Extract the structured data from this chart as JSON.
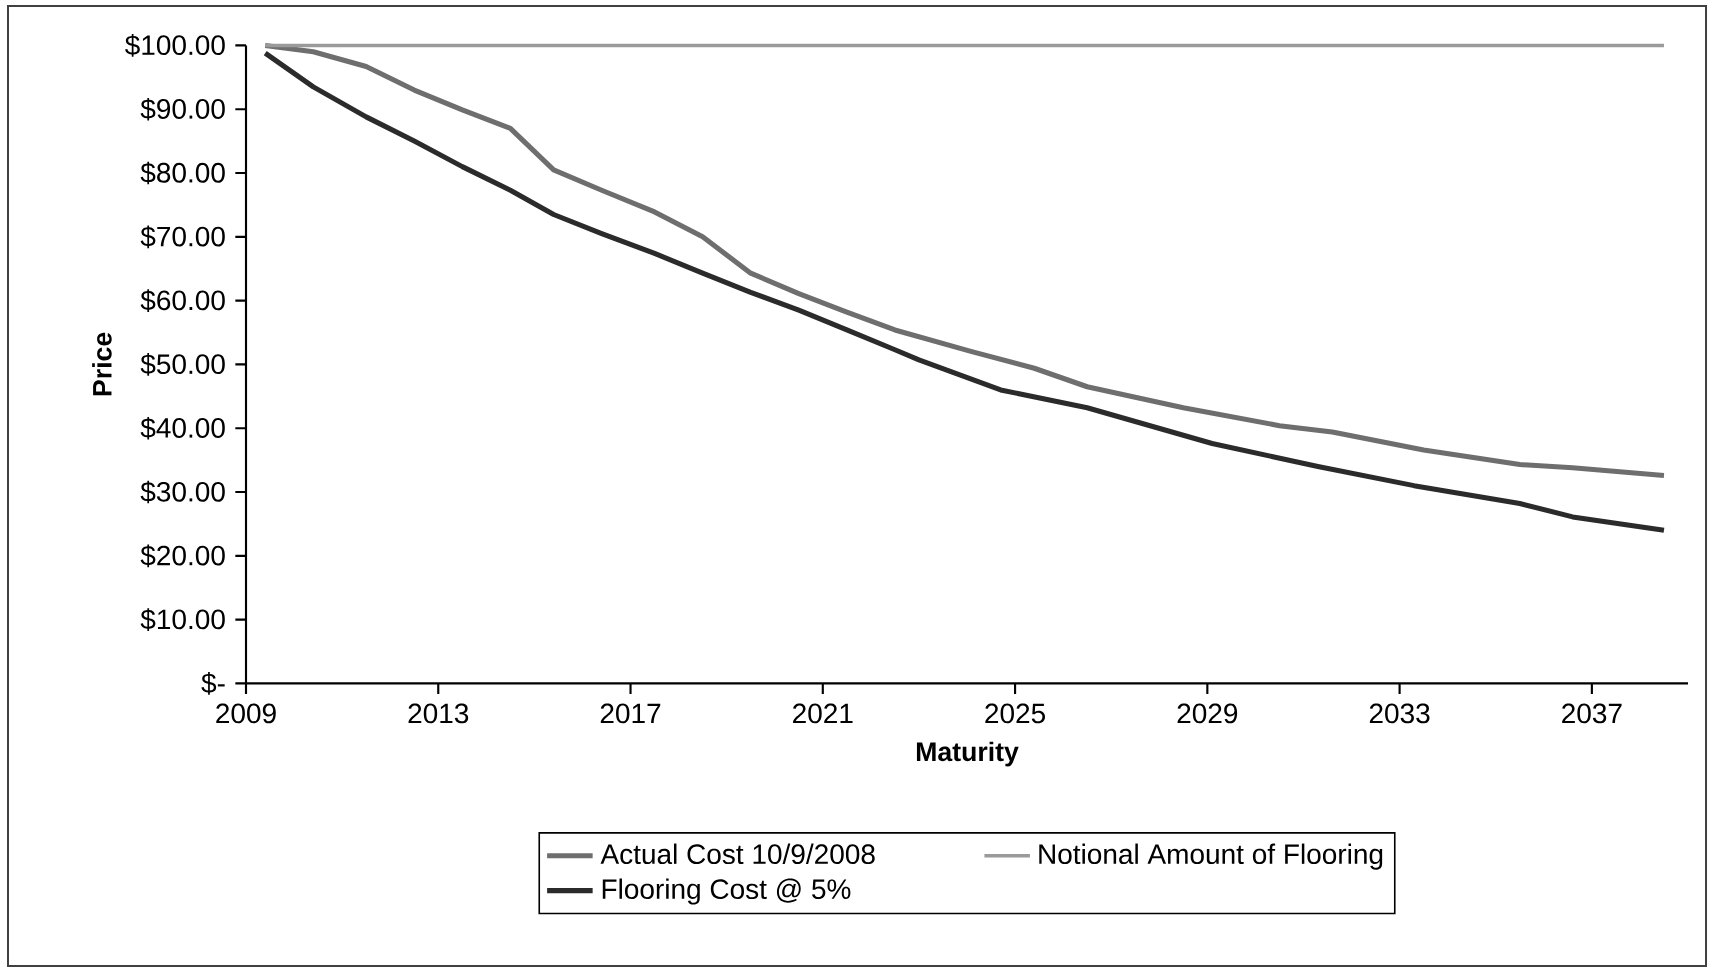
{
  "chart_data": {
    "type": "line",
    "xlabel": "Maturity",
    "ylabel": "Price",
    "xlim": [
      2009,
      2039
    ],
    "xticks": [
      2009,
      2013,
      2017,
      2021,
      2025,
      2029,
      2033,
      2037
    ],
    "ylim": [
      0,
      100
    ],
    "yticks": [
      {
        "value": 0,
        "label": "$-"
      },
      {
        "value": 10,
        "label": "$10.00"
      },
      {
        "value": 20,
        "label": "$20.00"
      },
      {
        "value": 30,
        "label": "$30.00"
      },
      {
        "value": 40,
        "label": "$40.00"
      },
      {
        "value": 50,
        "label": "$50.00"
      },
      {
        "value": 60,
        "label": "$60.00"
      },
      {
        "value": 70,
        "label": "$70.00"
      },
      {
        "value": 80,
        "label": "$80.00"
      },
      {
        "value": 90,
        "label": "$90.00"
      },
      {
        "value": 100,
        "label": "$100.00"
      }
    ],
    "grid": false,
    "legend": "bottom",
    "marker": "none",
    "line_style": "solid",
    "series": [
      {
        "name": "Actual Cost 10/9/2008",
        "color": "#6e6e6e",
        "x": [
          2009.4,
          2010.4,
          2011.5,
          2012.5,
          2013.5,
          2014.5,
          2015.4,
          2016.4,
          2017.5,
          2018.5,
          2019.5,
          2020.5,
          2021.5,
          2022.5,
          2024.1,
          2025.4,
          2026.5,
          2028.5,
          2030.5,
          2031.6,
          2033.5,
          2035.5,
          2036.6,
          2038.5
        ],
        "values": [
          100,
          99.0,
          96.7,
          93.0,
          89.9,
          87.0,
          80.5,
          77.3,
          73.9,
          70.0,
          64.3,
          61.1,
          58.2,
          55.4,
          52.0,
          49.4,
          46.5,
          43.2,
          40.4,
          39.4,
          36.6,
          34.3,
          33.8,
          32.6
        ]
      },
      {
        "name": "Notional Amount of Flooring",
        "color": "#9a9a9a",
        "x": [
          2009.4,
          2038.5
        ],
        "values": [
          100,
          100
        ]
      },
      {
        "name": "Flooring Cost @ 5%",
        "color": "#2b2b2b",
        "x": [
          2009.4,
          2010.4,
          2011.5,
          2012.5,
          2013.5,
          2014.5,
          2015.4,
          2016.4,
          2017.5,
          2018.5,
          2019.5,
          2020.5,
          2021.5,
          2022.5,
          2023.0,
          2024.7,
          2026.5,
          2029.1,
          2031.3,
          2033.3,
          2035.5,
          2036.6,
          2038.5
        ],
        "values": [
          98.8,
          93.5,
          88.8,
          85.0,
          81.0,
          77.3,
          73.5,
          70.5,
          67.4,
          64.3,
          61.3,
          58.5,
          55.4,
          52.3,
          50.7,
          46.0,
          43.2,
          37.6,
          34.0,
          31.0,
          28.2,
          26.1,
          24.0
        ]
      }
    ]
  }
}
